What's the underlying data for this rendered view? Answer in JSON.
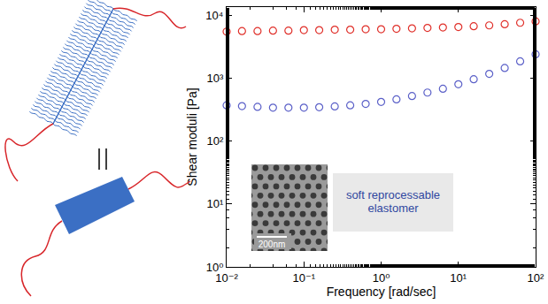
{
  "chart_data": {
    "type": "scatter",
    "log": true,
    "grid": false,
    "xlabel": "Frequency [rad/sec]",
    "ylabel": "Shear moduli [Pa]",
    "xlim": [
      0.01,
      100
    ],
    "ylim": [
      1,
      13500
    ],
    "xticks": [
      {
        "value": 0.01,
        "label": "10⁻²"
      },
      {
        "value": 0.1,
        "label": "10⁻¹"
      },
      {
        "value": 1,
        "label": "10⁰"
      },
      {
        "value": 10,
        "label": "10¹"
      },
      {
        "value": 100,
        "label": "10²"
      }
    ],
    "yticks": [
      {
        "value": 1,
        "label": "10⁰"
      },
      {
        "value": 10,
        "label": "10¹"
      },
      {
        "value": 100,
        "label": "10²"
      },
      {
        "value": 1000,
        "label": "10³"
      },
      {
        "value": 10000,
        "label": "10⁴"
      }
    ],
    "x": [
      0.01,
      0.0158,
      0.0251,
      0.0398,
      0.0631,
      0.1,
      0.158,
      0.251,
      0.398,
      0.631,
      1,
      1.58,
      2.51,
      3.98,
      6.31,
      10,
      15.8,
      25.1,
      39.8,
      63.1,
      100
    ],
    "series": [
      {
        "color": "#e0302a",
        "marker": "circle-open",
        "values": [
          5500,
          5600,
          5600,
          5700,
          5700,
          5800,
          5800,
          5900,
          5900,
          6000,
          6000,
          6100,
          6200,
          6300,
          6400,
          6500,
          6700,
          6900,
          7200,
          7600,
          8000
        ]
      },
      {
        "color": "#5b60c8",
        "marker": "circle-open",
        "values": [
          370,
          360,
          350,
          340,
          340,
          340,
          345,
          355,
          370,
          390,
          420,
          460,
          520,
          590,
          680,
          800,
          960,
          1170,
          1450,
          1850,
          2400
        ]
      }
    ],
    "annotations": [
      "200nm",
      "soft reprocessable elastomer"
    ]
  }
}
